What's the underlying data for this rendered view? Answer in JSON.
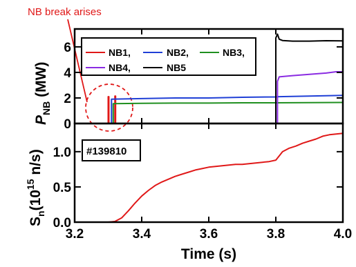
{
  "chart_data": {
    "type": "line",
    "x": {
      "label": "Time (s)",
      "lim": [
        3.2,
        4.0
      ],
      "ticks": [
        3.2,
        3.4,
        3.6,
        3.8,
        4.0
      ],
      "tick_labels": [
        "3.2",
        "3.4",
        "3.6",
        "3.8",
        "4.0"
      ]
    },
    "annotation": "NB break arises",
    "panels": [
      {
        "ylabel": {
          "main": "P",
          "sub": "NB",
          "rest": " (MW)"
        },
        "ylim": [
          0,
          7.4
        ],
        "yticks": [
          0,
          2,
          4,
          6
        ],
        "ytick_labels": [
          "0",
          "2",
          "4",
          "6"
        ],
        "legend_placement": "top",
        "series": [
          {
            "name": "NB1,",
            "color": "#e01818",
            "points": [
              [
                3.2,
                0
              ],
              [
                3.3,
                0
              ],
              [
                3.3,
                0
              ],
              [
                3.3,
                2.1
              ],
              [
                3.302,
                2.1
              ],
              [
                3.302,
                0
              ],
              [
                3.32,
                0
              ],
              [
                3.32,
                2.15
              ],
              [
                3.322,
                2.15
              ],
              [
                3.322,
                0
              ],
              [
                4.0,
                0
              ]
            ]
          },
          {
            "name": "NB2,",
            "color": "#1f3fd6",
            "points": [
              [
                3.2,
                0
              ],
              [
                3.31,
                0
              ],
              [
                3.31,
                1.9
              ],
              [
                3.4,
                1.95
              ],
              [
                3.5,
                2.0
              ],
              [
                3.6,
                2.0
              ],
              [
                3.7,
                2.05
              ],
              [
                3.8,
                2.08
              ],
              [
                3.81,
                2.1
              ],
              [
                3.9,
                2.15
              ],
              [
                4.0,
                2.2
              ]
            ]
          },
          {
            "name": "NB3,",
            "color": "#1f8f1f",
            "points": [
              [
                3.2,
                0
              ],
              [
                3.315,
                0
              ],
              [
                3.315,
                1.55
              ],
              [
                3.4,
                1.58
              ],
              [
                3.5,
                1.6
              ],
              [
                3.6,
                1.6
              ],
              [
                3.7,
                1.62
              ],
              [
                3.8,
                1.62
              ],
              [
                3.9,
                1.63
              ],
              [
                4.0,
                1.65
              ]
            ]
          },
          {
            "name": "NB4,",
            "color": "#8a2be2",
            "points": [
              [
                3.2,
                0
              ],
              [
                3.805,
                0
              ],
              [
                3.805,
                3.3
              ],
              [
                3.81,
                3.65
              ],
              [
                3.83,
                3.7
              ],
              [
                3.85,
                3.75
              ],
              [
                3.9,
                3.85
              ],
              [
                3.95,
                3.95
              ],
              [
                3.98,
                4.05
              ],
              [
                4.0,
                4.05
              ]
            ]
          },
          {
            "name": "NB5",
            "color": "#000000",
            "points": [
              [
                3.2,
                0
              ],
              [
                3.8,
                0
              ],
              [
                3.8,
                6.7
              ],
              [
                3.805,
                7.0
              ],
              [
                3.81,
                6.6
              ],
              [
                3.82,
                6.5
              ],
              [
                3.85,
                6.45
              ],
              [
                3.9,
                6.45
              ],
              [
                3.95,
                6.48
              ],
              [
                4.0,
                6.47
              ]
            ]
          }
        ]
      },
      {
        "ylabel": {
          "main": "S",
          "sub": "n",
          "rest_open": "(10",
          "sup": "15",
          "rest_close": " n/s)"
        },
        "ylim": [
          0,
          1.4
        ],
        "yticks": [
          0.0,
          0.5,
          1.0
        ],
        "ytick_labels": [
          "0.0",
          "0.5",
          "1.0"
        ],
        "shot_label": "#139810",
        "series": [
          {
            "name": "",
            "color": "#e01818",
            "points": [
              [
                3.2,
                0
              ],
              [
                3.3,
                0
              ],
              [
                3.32,
                0.01
              ],
              [
                3.34,
                0.06
              ],
              [
                3.36,
                0.16
              ],
              [
                3.38,
                0.27
              ],
              [
                3.4,
                0.37
              ],
              [
                3.42,
                0.45
              ],
              [
                3.44,
                0.52
              ],
              [
                3.46,
                0.57
              ],
              [
                3.48,
                0.61
              ],
              [
                3.5,
                0.65
              ],
              [
                3.52,
                0.68
              ],
              [
                3.54,
                0.71
              ],
              [
                3.56,
                0.74
              ],
              [
                3.58,
                0.76
              ],
              [
                3.6,
                0.78
              ],
              [
                3.62,
                0.79
              ],
              [
                3.64,
                0.8
              ],
              [
                3.66,
                0.81
              ],
              [
                3.68,
                0.82
              ],
              [
                3.7,
                0.82
              ],
              [
                3.72,
                0.83
              ],
              [
                3.74,
                0.84
              ],
              [
                3.76,
                0.85
              ],
              [
                3.78,
                0.86
              ],
              [
                3.8,
                0.88
              ],
              [
                3.81,
                0.94
              ],
              [
                3.82,
                1.0
              ],
              [
                3.84,
                1.05
              ],
              [
                3.86,
                1.08
              ],
              [
                3.88,
                1.12
              ],
              [
                3.9,
                1.15
              ],
              [
                3.92,
                1.18
              ],
              [
                3.94,
                1.22
              ],
              [
                3.96,
                1.24
              ],
              [
                3.98,
                1.25
              ],
              [
                4.0,
                1.26
              ]
            ]
          }
        ]
      }
    ]
  }
}
